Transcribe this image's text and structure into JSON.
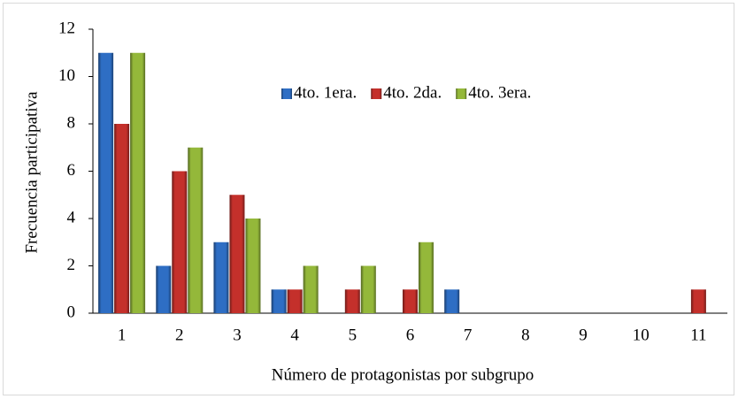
{
  "chart_data": {
    "type": "bar",
    "categories": [
      "1",
      "2",
      "3",
      "4",
      "5",
      "6",
      "7",
      "8",
      "9",
      "10",
      "11"
    ],
    "series": [
      {
        "name": "4to. 1era.",
        "color": "#2e6ec4",
        "values": [
          11,
          2,
          3,
          1,
          0,
          0,
          1,
          0,
          0,
          0,
          0
        ]
      },
      {
        "name": "4to. 2da.",
        "color": "#c4302b",
        "values": [
          8,
          6,
          5,
          1,
          1,
          1,
          0,
          0,
          0,
          0,
          1
        ]
      },
      {
        "name": "4to. 3era.",
        "color": "#94b83a",
        "values": [
          11,
          7,
          4,
          2,
          2,
          3,
          0,
          0,
          0,
          0,
          0
        ]
      }
    ],
    "x_label": "Número de protagonistas por subgrupo",
    "y_label": "Frecuencia participativa",
    "ylim": [
      0,
      12
    ],
    "yticks": [
      0,
      2,
      4,
      6,
      8,
      10,
      12
    ],
    "grid": false,
    "legend": "top"
  }
}
